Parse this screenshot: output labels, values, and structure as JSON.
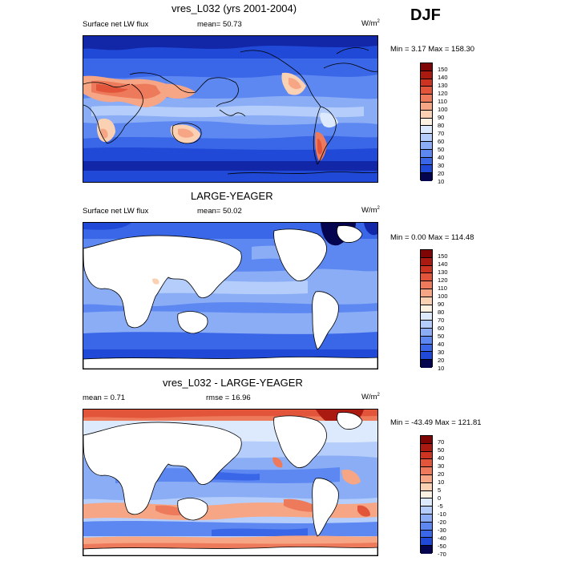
{
  "season": "DJF",
  "colors": {
    "palette": [
      "#05054f",
      "#1227a8",
      "#1f49d6",
      "#3a66e8",
      "#5d88f2",
      "#8aadf6",
      "#b5cdfa",
      "#dde9fd",
      "#fdf1e2",
      "#fbd1b3",
      "#f6a585",
      "#ee7a5c",
      "#e2553b",
      "#cc3320",
      "#aa1a10",
      "#7d0505"
    ],
    "land": "#ffffff",
    "coast": "#000000"
  },
  "panels": [
    {
      "title": "vres_L032 (yrs 2001-2004)",
      "left_label": "Surface net LW flux",
      "mean_text": "mean=  50.73",
      "units_base": "W/m",
      "units_exp": "2",
      "minmax": "Min =   3.17 Max = 158.30",
      "levels": [
        "150",
        "140",
        "130",
        "120",
        "110",
        "100",
        "90",
        "80",
        "70",
        "60",
        "50",
        "40",
        "30",
        "20",
        "10"
      ],
      "land_fill": false
    },
    {
      "title": "LARGE-YEAGER",
      "left_label": "Surface net LW flux",
      "mean_text": "mean=  50.02",
      "units_base": "W/m",
      "units_exp": "2",
      "minmax": "Min =   0.00 Max = 114.48",
      "levels": [
        "150",
        "140",
        "130",
        "120",
        "110",
        "100",
        "90",
        "80",
        "70",
        "60",
        "50",
        "40",
        "30",
        "20",
        "10"
      ],
      "land_fill": true
    },
    {
      "title": "vres_L032 - LARGE-YEAGER",
      "left_label": "mean =   0.71",
      "mean_text": "rmse =  16.96",
      "units_base": "W/m",
      "units_exp": "2",
      "minmax": "Min = -43.49 Max = 121.81",
      "levels": [
        "70",
        "50",
        "40",
        "30",
        "20",
        "10",
        "5",
        "0",
        "-5",
        "-10",
        "-20",
        "-30",
        "-40",
        "-50",
        "-70"
      ],
      "land_fill": true
    }
  ]
}
